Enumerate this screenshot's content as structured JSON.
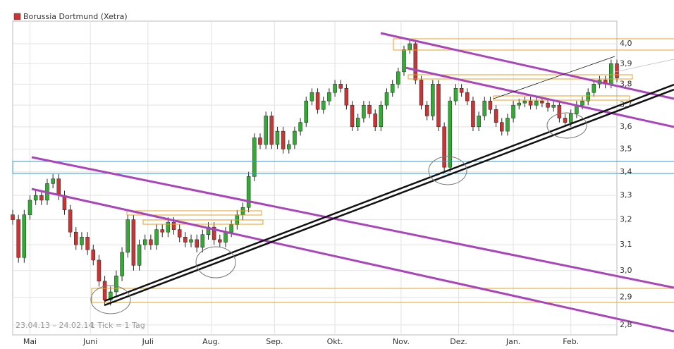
{
  "chart_data": {
    "type": "candlestick",
    "title": "Borussia Dortmund (Xetra)",
    "period": "23.04.13 – 24.02.14",
    "tick_note": "1 Tick = 1 Tag",
    "log_scale": true,
    "grid": true,
    "up_color": "#33aa33",
    "down_color": "#cc3333",
    "legend_color": "#cc3333",
    "x": [
      0,
      2,
      4,
      6,
      8,
      10,
      12,
      14,
      16,
      18,
      20,
      22,
      24,
      26,
      28,
      30,
      32,
      34,
      36,
      38,
      40,
      42,
      44,
      46,
      48,
      50,
      52,
      54,
      56,
      58,
      60,
      62,
      64,
      66,
      68,
      70,
      72,
      74,
      76,
      78,
      80,
      82,
      84,
      86,
      88,
      90,
      92,
      94,
      96,
      98,
      100,
      102,
      104,
      106,
      108,
      110,
      112,
      114,
      116,
      118,
      120,
      122,
      124,
      126,
      128,
      130,
      132,
      134,
      136,
      138,
      140,
      142,
      144,
      146,
      148,
      150,
      152,
      154,
      156,
      158,
      160,
      162,
      164,
      166,
      168,
      170,
      172,
      174,
      176,
      178,
      180,
      182,
      184,
      186,
      188,
      190,
      192,
      194,
      196,
      198,
      200,
      202,
      204,
      206,
      208,
      210
    ],
    "open": [
      3.22,
      3.2,
      3.05,
      3.22,
      3.28,
      3.3,
      3.28,
      3.35,
      3.37,
      3.3,
      3.24,
      3.15,
      3.1,
      3.13,
      3.08,
      3.04,
      2.96,
      2.89,
      2.92,
      2.98,
      3.07,
      3.2,
      3.02,
      3.1,
      3.12,
      3.1,
      3.16,
      3.15,
      3.19,
      3.16,
      3.13,
      3.11,
      3.12,
      3.09,
      3.14,
      3.17,
      3.12,
      3.11,
      3.15,
      3.18,
      3.22,
      3.25,
      3.38,
      3.55,
      3.52,
      3.65,
      3.52,
      3.58,
      3.5,
      3.52,
      3.58,
      3.62,
      3.72,
      3.76,
      3.68,
      3.72,
      3.76,
      3.8,
      3.78,
      3.7,
      3.6,
      3.64,
      3.7,
      3.66,
      3.6,
      3.7,
      3.76,
      3.8,
      3.86,
      3.97,
      4.0,
      3.82,
      3.7,
      3.65,
      3.8,
      3.6,
      3.42,
      3.72,
      3.78,
      3.76,
      3.72,
      3.6,
      3.65,
      3.72,
      3.68,
      3.62,
      3.58,
      3.64,
      3.7,
      3.71,
      3.72,
      3.7,
      3.72,
      3.71,
      3.69,
      3.7,
      3.64,
      3.62,
      3.66,
      3.7,
      3.72,
      3.76,
      3.8,
      3.82,
      3.8,
      3.9
    ],
    "high": [
      3.24,
      3.22,
      3.24,
      3.3,
      3.32,
      3.32,
      3.37,
      3.39,
      3.39,
      3.32,
      3.26,
      3.17,
      3.15,
      3.15,
      3.1,
      3.06,
      2.98,
      2.94,
      3.0,
      3.09,
      3.22,
      3.22,
      3.12,
      3.14,
      3.14,
      3.18,
      3.18,
      3.21,
      3.21,
      3.18,
      3.15,
      3.14,
      3.14,
      3.16,
      3.19,
      3.19,
      3.14,
      3.17,
      3.2,
      3.24,
      3.27,
      3.4,
      3.57,
      3.57,
      3.67,
      3.67,
      3.6,
      3.6,
      3.54,
      3.6,
      3.64,
      3.74,
      3.78,
      3.78,
      3.74,
      3.78,
      3.82,
      3.82,
      3.8,
      3.72,
      3.66,
      3.72,
      3.72,
      3.68,
      3.72,
      3.78,
      3.82,
      3.88,
      3.99,
      4.02,
      4.02,
      3.84,
      3.72,
      3.82,
      3.82,
      3.62,
      3.74,
      3.8,
      3.8,
      3.78,
      3.74,
      3.67,
      3.74,
      3.74,
      3.7,
      3.64,
      3.66,
      3.72,
      3.73,
      3.74,
      3.74,
      3.74,
      3.74,
      3.73,
      3.72,
      3.72,
      3.66,
      3.68,
      3.72,
      3.74,
      3.78,
      3.82,
      3.84,
      3.84,
      3.92,
      3.92
    ],
    "low": [
      3.18,
      3.03,
      3.03,
      3.2,
      3.26,
      3.26,
      3.26,
      3.33,
      3.28,
      3.22,
      3.13,
      3.08,
      3.08,
      3.06,
      3.02,
      2.94,
      2.87,
      2.87,
      2.9,
      2.96,
      3.05,
      3.0,
      3.0,
      3.08,
      3.08,
      3.08,
      3.13,
      3.13,
      3.14,
      3.11,
      3.09,
      3.09,
      3.07,
      3.07,
      3.12,
      3.1,
      3.09,
      3.09,
      3.13,
      3.16,
      3.2,
      3.23,
      3.36,
      3.5,
      3.5,
      3.5,
      3.5,
      3.48,
      3.48,
      3.5,
      3.56,
      3.6,
      3.7,
      3.66,
      3.66,
      3.7,
      3.74,
      3.76,
      3.68,
      3.58,
      3.58,
      3.62,
      3.64,
      3.58,
      3.58,
      3.68,
      3.74,
      3.78,
      3.84,
      3.95,
      3.8,
      3.68,
      3.63,
      3.63,
      3.58,
      3.4,
      3.4,
      3.7,
      3.74,
      3.7,
      3.58,
      3.58,
      3.63,
      3.66,
      3.6,
      3.56,
      3.56,
      3.62,
      3.68,
      3.69,
      3.68,
      3.68,
      3.69,
      3.67,
      3.67,
      3.62,
      3.6,
      3.6,
      3.64,
      3.68,
      3.7,
      3.74,
      3.78,
      3.78,
      3.78,
      3.81
    ],
    "close": [
      3.2,
      3.05,
      3.22,
      3.28,
      3.3,
      3.28,
      3.35,
      3.37,
      3.3,
      3.24,
      3.15,
      3.1,
      3.13,
      3.08,
      3.04,
      2.96,
      2.89,
      2.92,
      2.98,
      3.07,
      3.2,
      3.02,
      3.1,
      3.12,
      3.1,
      3.16,
      3.15,
      3.19,
      3.16,
      3.13,
      3.11,
      3.12,
      3.09,
      3.14,
      3.17,
      3.12,
      3.11,
      3.15,
      3.18,
      3.22,
      3.25,
      3.38,
      3.55,
      3.52,
      3.65,
      3.52,
      3.58,
      3.5,
      3.52,
      3.58,
      3.62,
      3.72,
      3.76,
      3.68,
      3.72,
      3.76,
      3.8,
      3.78,
      3.7,
      3.6,
      3.64,
      3.7,
      3.66,
      3.6,
      3.7,
      3.76,
      3.8,
      3.86,
      3.97,
      4.0,
      3.82,
      3.7,
      3.65,
      3.8,
      3.6,
      3.42,
      3.72,
      3.78,
      3.76,
      3.72,
      3.6,
      3.65,
      3.72,
      3.68,
      3.62,
      3.58,
      3.64,
      3.7,
      3.71,
      3.72,
      3.7,
      3.72,
      3.71,
      3.69,
      3.7,
      3.64,
      3.62,
      3.66,
      3.7,
      3.72,
      3.76,
      3.8,
      3.82,
      3.8,
      3.9,
      3.83
    ],
    "xlim": [
      0,
      210
    ],
    "xticks": [
      {
        "value": 6,
        "label": "Mai"
      },
      {
        "value": 27,
        "label": "Juni"
      },
      {
        "value": 47,
        "label": "Juli"
      },
      {
        "value": 69,
        "label": "Aug."
      },
      {
        "value": 91,
        "label": "Sep."
      },
      {
        "value": 112,
        "label": "Okt."
      },
      {
        "value": 135,
        "label": "Nov."
      },
      {
        "value": 155,
        "label": "Dez."
      },
      {
        "value": 174,
        "label": "Jan."
      },
      {
        "value": 194,
        "label": "Feb."
      }
    ],
    "ylim": [
      2.765,
      4.116
    ],
    "yticks": [
      {
        "value": 2.8,
        "label": "2,8"
      },
      {
        "value": 2.9,
        "label": "2,9"
      },
      {
        "value": 3.0,
        "label": "3,0"
      },
      {
        "value": 3.1,
        "label": "3,1"
      },
      {
        "value": 3.2,
        "label": "3,2"
      },
      {
        "value": 3.3,
        "label": "3,3"
      },
      {
        "value": 3.4,
        "label": "3,4"
      },
      {
        "value": 3.5,
        "label": "3,5"
      },
      {
        "value": 3.6,
        "label": "3,6"
      },
      {
        "value": 3.7,
        "label": "3,7"
      },
      {
        "value": 3.8,
        "label": "3,8"
      },
      {
        "value": 3.9,
        "label": "3,9"
      },
      {
        "value": 4.0,
        "label": "4,0"
      }
    ]
  }
}
